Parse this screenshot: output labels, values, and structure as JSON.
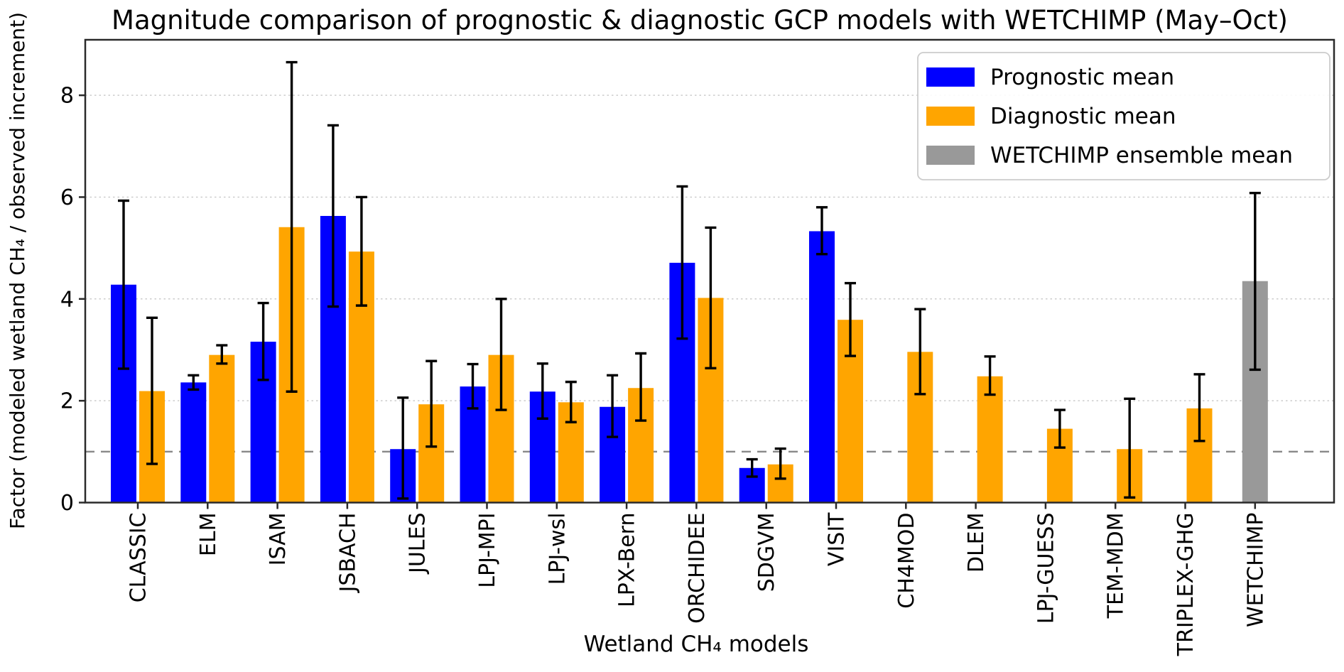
{
  "chart_data": {
    "type": "bar",
    "title": "Magnitude comparison of prognostic & diagnostic GCP models with WETCHIMP (May–Oct)",
    "xlabel": "Wetland CH₄ models",
    "ylabel": "Factor (modeled wetland CH₄ / observed increment)",
    "categories": [
      "CLASSIC",
      "ELM",
      "ISAM",
      "JSBACH",
      "JULES",
      "LPJ-MPI",
      "LPJ-wsl",
      "LPX-Bern",
      "ORCHIDEE",
      "SDGVM",
      "VISIT",
      "CH4MOD",
      "DLEM",
      "LPJ-GUESS",
      "TEM-MDM",
      "TRIPLEX-GHG",
      "WETCHIMP"
    ],
    "yticks": [
      0,
      2,
      4,
      6,
      8
    ],
    "ylim": [
      0,
      9.09
    ],
    "grid": true,
    "gridline_color": "#cccccc",
    "reference_line_y": 1,
    "reference_line_color": "#888888",
    "legend_position": "upper right",
    "legend": [
      "Prognostic mean",
      "Diagnostic mean",
      "WETCHIMP ensemble mean"
    ],
    "series": [
      {
        "name": "Prognostic mean",
        "color": "#0000ff",
        "values": [
          4.28,
          2.36,
          3.16,
          5.63,
          1.05,
          2.28,
          2.18,
          1.88,
          4.71,
          0.68,
          5.33,
          null,
          null,
          null,
          null,
          null,
          null
        ],
        "err_lo": [
          2.63,
          2.22,
          2.41,
          3.85,
          0.08,
          1.85,
          1.65,
          1.29,
          3.22,
          0.51,
          4.88,
          null,
          null,
          null,
          null,
          null,
          null
        ],
        "err_hi": [
          5.93,
          2.5,
          3.92,
          7.41,
          2.06,
          2.72,
          2.73,
          2.5,
          6.21,
          0.85,
          5.8,
          null,
          null,
          null,
          null,
          null,
          null
        ]
      },
      {
        "name": "Diagnostic mean",
        "color": "#ffa500",
        "values": [
          2.19,
          2.9,
          5.41,
          4.93,
          1.93,
          2.9,
          1.97,
          2.25,
          4.02,
          0.75,
          3.59,
          2.96,
          2.48,
          1.45,
          1.05,
          1.85,
          null
        ],
        "err_lo": [
          0.76,
          2.73,
          2.18,
          3.87,
          1.1,
          1.82,
          1.58,
          1.61,
          2.64,
          0.47,
          2.88,
          2.13,
          2.12,
          1.08,
          0.1,
          1.21,
          null
        ],
        "err_hi": [
          3.63,
          3.09,
          8.65,
          6.0,
          2.78,
          4.0,
          2.37,
          2.93,
          5.4,
          1.06,
          4.31,
          3.8,
          2.87,
          1.82,
          2.04,
          2.52,
          null
        ]
      },
      {
        "name": "WETCHIMP ensemble mean",
        "color": "#999999",
        "values": [
          null,
          null,
          null,
          null,
          null,
          null,
          null,
          null,
          null,
          null,
          null,
          null,
          null,
          null,
          null,
          null,
          4.35
        ],
        "err_lo": [
          null,
          null,
          null,
          null,
          null,
          null,
          null,
          null,
          null,
          null,
          null,
          null,
          null,
          null,
          null,
          null,
          2.61
        ],
        "err_hi": [
          null,
          null,
          null,
          null,
          null,
          null,
          null,
          null,
          null,
          null,
          null,
          null,
          null,
          null,
          null,
          null,
          6.08
        ]
      }
    ]
  }
}
